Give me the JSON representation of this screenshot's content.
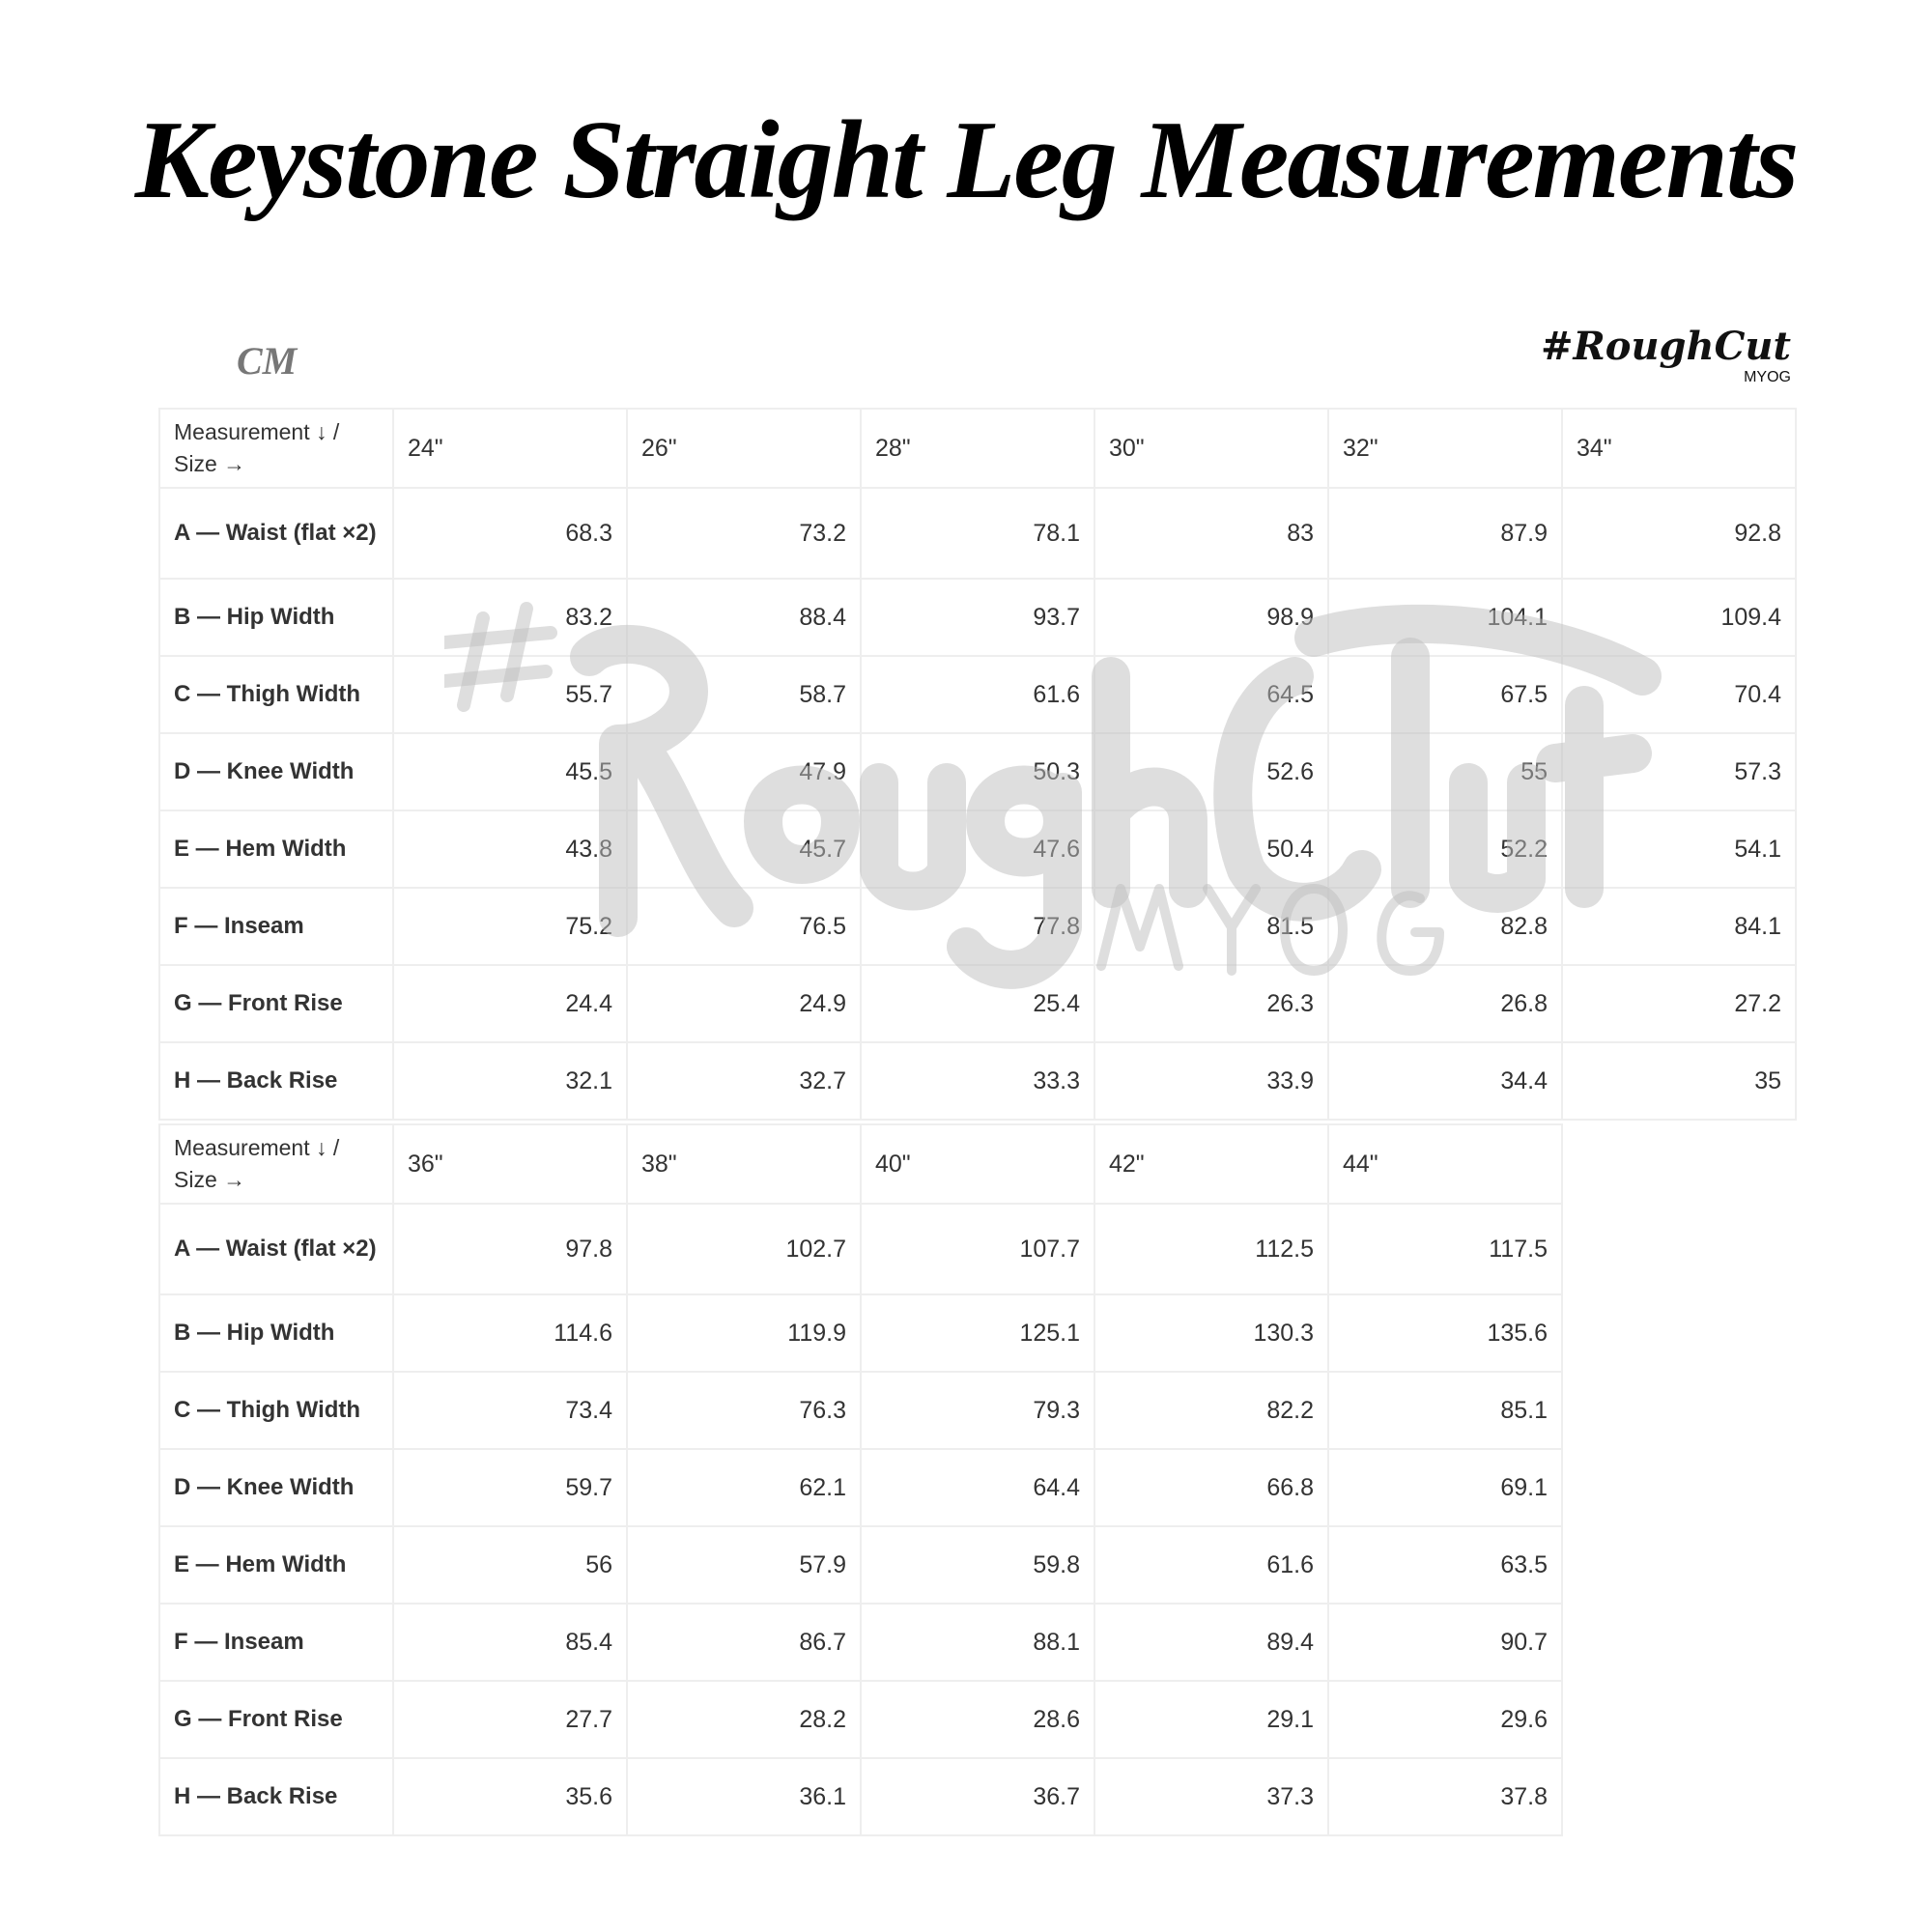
{
  "title": "Keystone Straight Leg Measurements",
  "unit": "CM",
  "logo": {
    "text": "#RoughCut",
    "sub": "MYOG"
  },
  "watermark": {
    "text": "#RoughCut",
    "sub": "MYOG"
  },
  "header_label": "Measurement ↓ / Size →",
  "row_labels": [
    "A — Waist (flat ×2)",
    "B — Hip Width",
    "C — Thigh Width",
    "D — Knee Width",
    "E — Hem Width",
    "F — Inseam",
    "G — Front Rise",
    "H — Back Rise"
  ],
  "tables": [
    {
      "sizes": [
        "24\"",
        "26\"",
        "28\"",
        "30\"",
        "32\"",
        "34\""
      ],
      "rows": [
        [
          "68.3",
          "73.2",
          "78.1",
          "83",
          "87.9",
          "92.8"
        ],
        [
          "83.2",
          "88.4",
          "93.7",
          "98.9",
          "104.1",
          "109.4"
        ],
        [
          "55.7",
          "58.7",
          "61.6",
          "64.5",
          "67.5",
          "70.4"
        ],
        [
          "45.5",
          "47.9",
          "50.3",
          "52.6",
          "55",
          "57.3"
        ],
        [
          "43.8",
          "45.7",
          "47.6",
          "50.4",
          "52.2",
          "54.1"
        ],
        [
          "75.2",
          "76.5",
          "77.8",
          "81.5",
          "82.8",
          "84.1"
        ],
        [
          "24.4",
          "24.9",
          "25.4",
          "26.3",
          "26.8",
          "27.2"
        ],
        [
          "32.1",
          "32.7",
          "33.3",
          "33.9",
          "34.4",
          "35"
        ]
      ]
    },
    {
      "sizes": [
        "36\"",
        "38\"",
        "40\"",
        "42\"",
        "44\""
      ],
      "rows": [
        [
          "97.8",
          "102.7",
          "107.7",
          "112.5",
          "117.5"
        ],
        [
          "114.6",
          "119.9",
          "125.1",
          "130.3",
          "135.6"
        ],
        [
          "73.4",
          "76.3",
          "79.3",
          "82.2",
          "85.1"
        ],
        [
          "59.7",
          "62.1",
          "64.4",
          "66.8",
          "69.1"
        ],
        [
          "56",
          "57.9",
          "59.8",
          "61.6",
          "63.5"
        ],
        [
          "85.4",
          "86.7",
          "88.1",
          "89.4",
          "90.7"
        ],
        [
          "27.7",
          "28.2",
          "28.6",
          "29.1",
          "29.6"
        ],
        [
          "35.6",
          "36.1",
          "36.7",
          "37.3",
          "37.8"
        ]
      ]
    }
  ]
}
